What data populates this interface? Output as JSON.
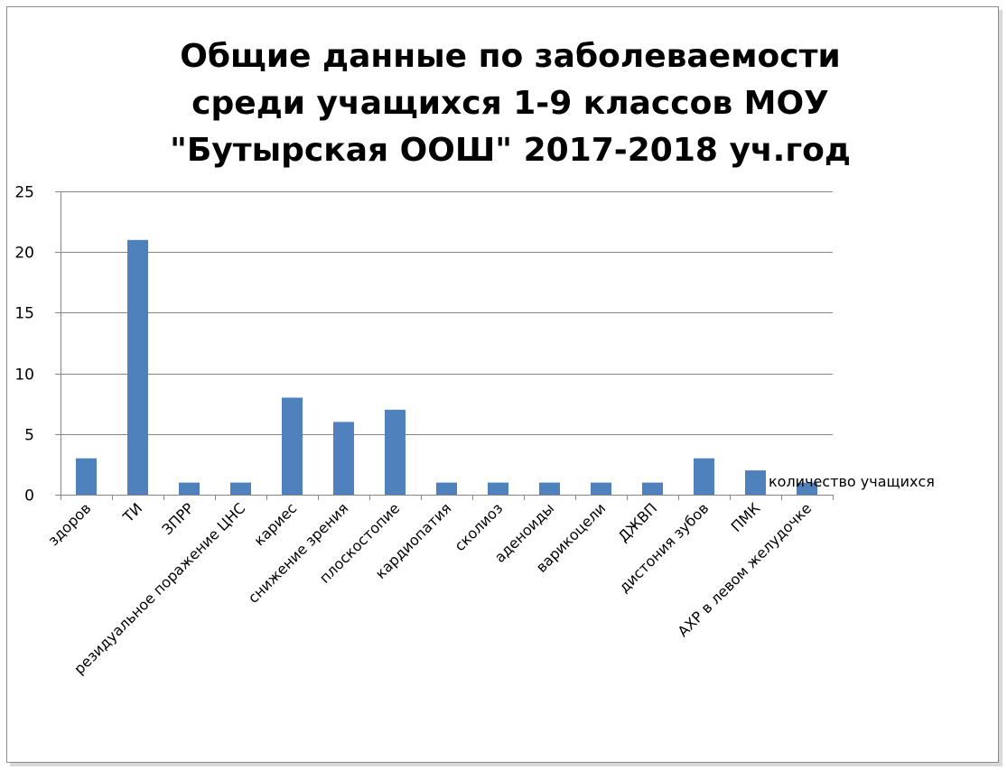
{
  "chart_data": {
    "type": "bar",
    "title": "Общие данные по заболеваемости среди учащихся 1-9 классов МОУ \"Бутырская ООШ\" 2017-2018 уч.год",
    "title_lines": [
      "Общие данные по заболеваемости",
      "среди учащихся 1-9 классов МОУ",
      "\"Бутырская ООШ\" 2017-2018 уч.год"
    ],
    "xlabel": "",
    "ylabel": "",
    "categories": [
      "здоров",
      "ТИ",
      "ЗПРР",
      "резидуальное поражение ЦНС",
      "кариес",
      "снижение зрения",
      "плоскостопие",
      "кардиопатия",
      "сколиоз",
      "аденоиды",
      "варикоцели",
      "ДЖВП",
      "дистония зубов",
      "ПМК",
      "АХР в левом желудочке"
    ],
    "series": [
      {
        "name": "количество учащихся",
        "values": [
          3,
          21,
          1,
          1,
          8,
          6,
          7,
          1,
          1,
          1,
          1,
          1,
          3,
          2,
          1
        ]
      }
    ],
    "ylim": [
      0,
      25
    ],
    "yticks": [
      "0",
      "5",
      "10",
      "15",
      "20",
      "25"
    ],
    "grid": true,
    "legend_position": "right",
    "bar_color": "#4f81bd"
  }
}
